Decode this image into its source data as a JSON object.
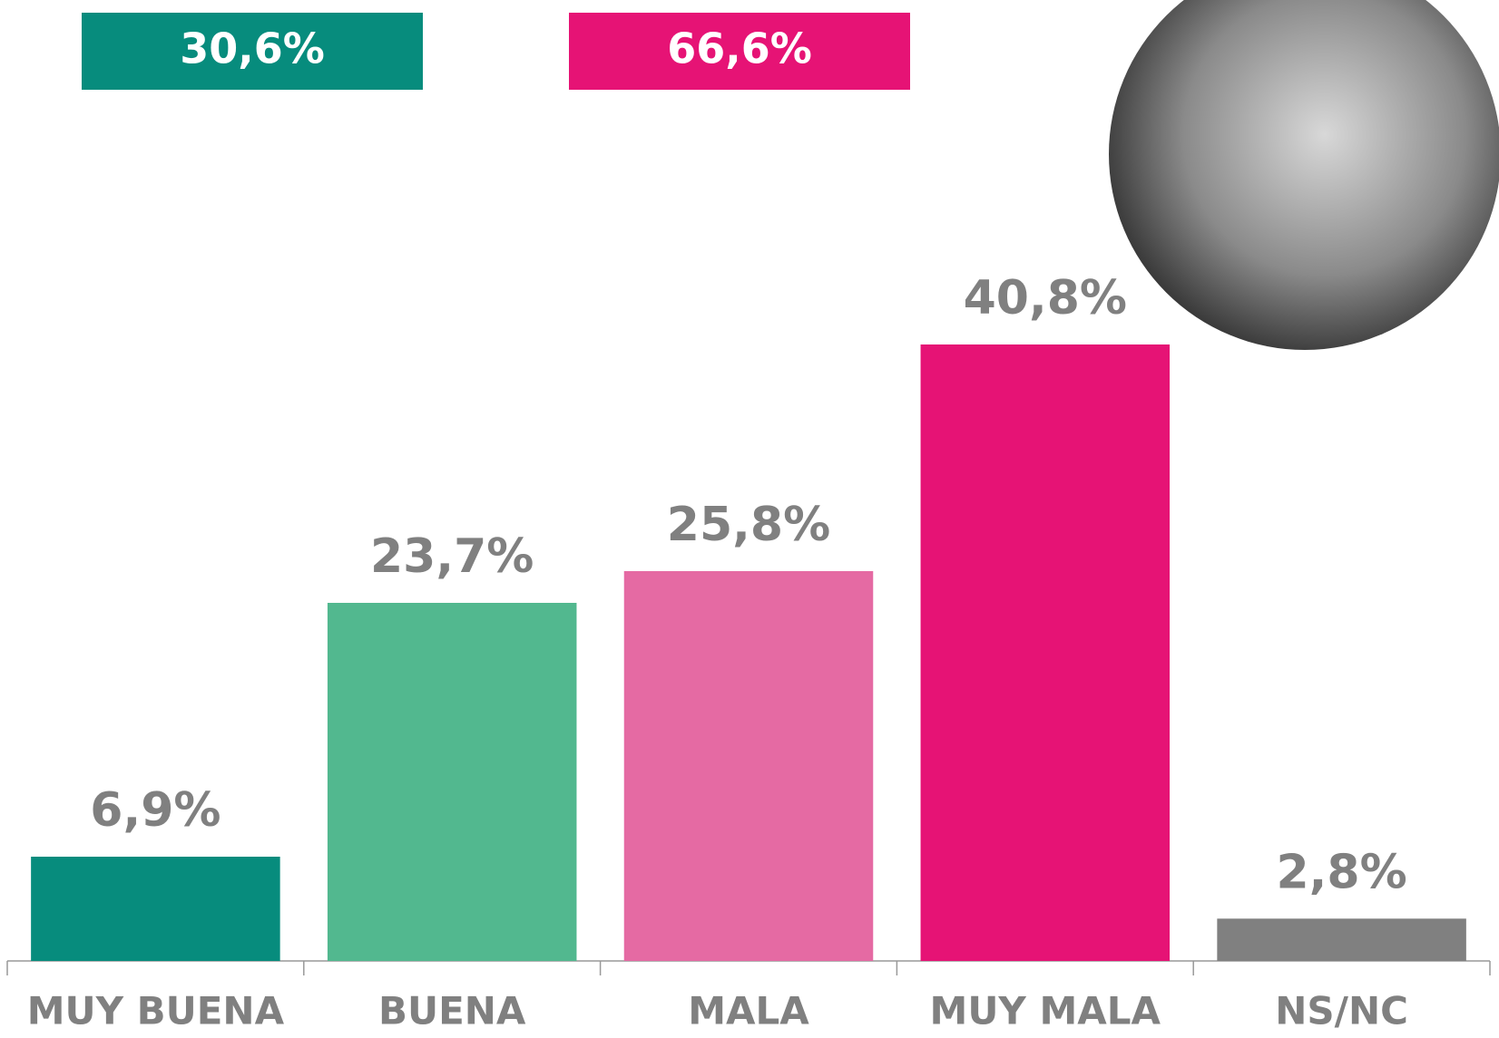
{
  "chart_data": {
    "type": "bar",
    "summary": [
      {
        "label": "30,6%",
        "color": "#078c7d"
      },
      {
        "label": "66,6%",
        "color": "#e61375"
      }
    ],
    "categories": [
      "MUY BUENA",
      "BUENA",
      "MALA",
      "MUY MALA",
      "NS/NC"
    ],
    "values": [
      6.9,
      23.7,
      25.8,
      40.8,
      2.8
    ],
    "value_labels": [
      "6,9%",
      "23,7%",
      "25,8%",
      "40,8%",
      "2,8%"
    ],
    "colors": [
      "#078c7d",
      "#52b88f",
      "#e56aa3",
      "#e61375",
      "#808080"
    ],
    "ylim": [
      0,
      60
    ]
  }
}
